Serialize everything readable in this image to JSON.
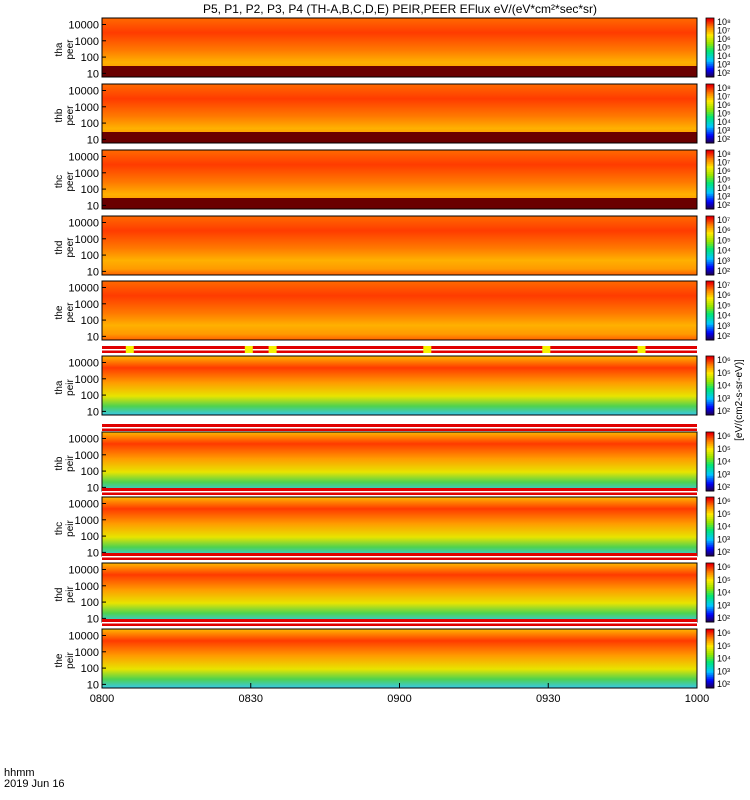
{
  "title": "P5, P1, P2, P3, P4 (TH-A,B,C,D,E) PEIR,PEER EFlux eV/(eV*cm²*sec*sr)",
  "colorbar_unit_label": "[eV/(cm2-s-sr-eV)]",
  "x_axis_footer": {
    "line1": "hhmm",
    "line2": "2019 Jun 16"
  },
  "chart_data": {
    "type": "heatmap",
    "title": "P5, P1, P2, P3, P4 (TH-A,B,C,D,E) PEIR,PEER EFlux eV/(eV*cm²*sec*sr)",
    "x_axis": {
      "range": [
        "0800",
        "1000"
      ],
      "ticks": [
        "0800",
        "0830",
        "0900",
        "0930",
        "1000"
      ],
      "label": "hhmm",
      "date": "2019 Jun 16"
    },
    "y_axis": {
      "scale": "log",
      "ticks": [
        "10",
        "100",
        "1000",
        "10000"
      ]
    },
    "colorbar": {
      "scale": "log",
      "ticks": [
        "10²",
        "10³",
        "10⁴",
        "10⁵",
        "10⁶",
        "10⁷",
        "10⁸"
      ]
    },
    "panels": [
      {
        "label": "tha\npeer",
        "species": "electron",
        "probe": "tha",
        "cbar_min_exp": 2,
        "cbar_max_exp": 8
      },
      {
        "label": "thb\npeer",
        "species": "electron",
        "probe": "thb",
        "cbar_min_exp": 2,
        "cbar_max_exp": 8
      },
      {
        "label": "thc\npeer",
        "species": "electron",
        "probe": "thc",
        "cbar_min_exp": 2,
        "cbar_max_exp": 8
      },
      {
        "label": "thd\npeer",
        "species": "electron",
        "probe": "thd",
        "cbar_min_exp": 2,
        "cbar_max_exp": 7
      },
      {
        "label": "the\npeer",
        "species": "electron",
        "probe": "the",
        "cbar_min_exp": 2,
        "cbar_max_exp": 7
      },
      {
        "label": "tha\npeir",
        "species": "ion",
        "probe": "tha",
        "cbar_min_exp": 2,
        "cbar_max_exp": 6
      },
      {
        "label": "thb\npeir",
        "species": "ion",
        "probe": "thb",
        "cbar_min_exp": 2,
        "cbar_max_exp": 6
      },
      {
        "label": "thc\npeir",
        "species": "ion",
        "probe": "thc",
        "cbar_min_exp": 2,
        "cbar_max_exp": 6
      },
      {
        "label": "thd\npeir",
        "species": "ion",
        "probe": "thd",
        "cbar_min_exp": 2,
        "cbar_max_exp": 6
      },
      {
        "label": "the\npeir",
        "species": "ion",
        "probe": "the",
        "cbar_min_exp": 2,
        "cbar_max_exp": 6
      }
    ]
  }
}
